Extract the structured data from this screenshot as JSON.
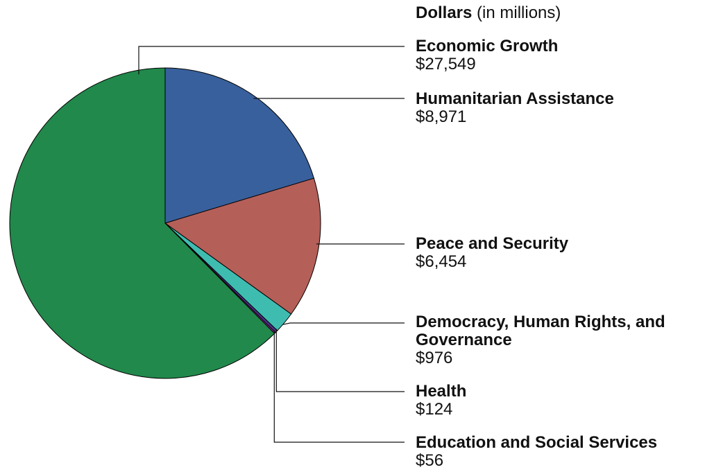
{
  "chart_data": {
    "type": "pie",
    "unit_label_bold": "Dollars",
    "unit_label_rest": " (in millions)",
    "slices": [
      {
        "name": "Humanitarian Assistance",
        "value": 8971,
        "value_label": "$8,971",
        "color": "#38609c"
      },
      {
        "name": "Peace and Security",
        "value": 6454,
        "value_label": "$6,454",
        "color": "#b55f59"
      },
      {
        "name": "Democracy, Human Rights, and Governance",
        "value": 976,
        "value_label": "$976",
        "color": "#3fbcb0"
      },
      {
        "name": "Health",
        "value": 124,
        "value_label": "$124",
        "color": "#4a2f86"
      },
      {
        "name": "Education and Social Services",
        "value": 56,
        "value_label": "$56",
        "color": "#d13fd0"
      },
      {
        "name": "Economic Growth",
        "value": 27549,
        "value_label": "$27,549",
        "color": "#21894b"
      }
    ],
    "start_direction": "12 o'clock",
    "slice_order": "clockwise"
  }
}
